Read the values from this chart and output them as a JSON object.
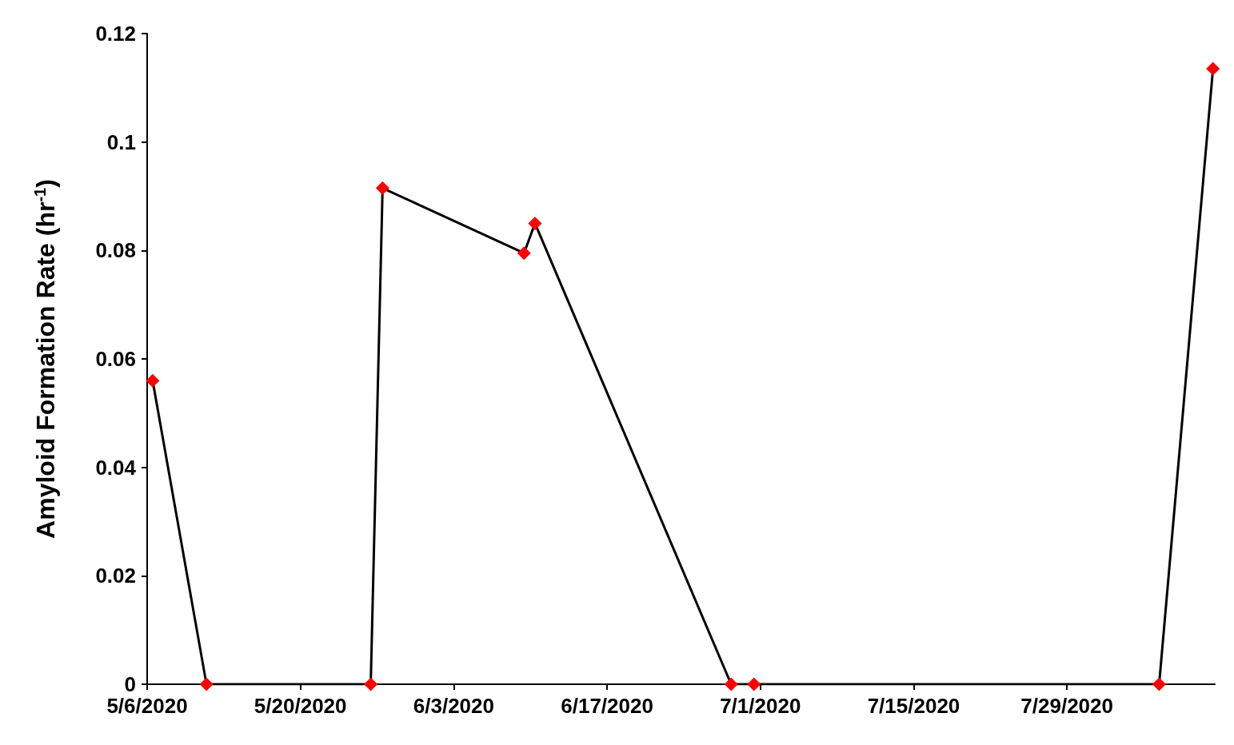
{
  "chart_data": {
    "type": "line",
    "ylabel": "Amyloid Formation Rate (hr$^{-1}$)",
    "x": [
      "2020-05-06T12:00",
      "2020-05-11T10:00",
      "2020-05-26T10:00",
      "2020-05-27T12:00",
      "2020-06-09T10:00",
      "2020-06-10T10:00",
      "2020-06-28T08:00",
      "2020-06-30T10:00",
      "2020-08-06T10:00",
      "2020-08-11T08:00"
    ],
    "series": [
      {
        "color": "#000000",
        "colors": [
          "#ff0000",
          "#ff0000",
          "#ff0000",
          "#ff0000",
          "#ff0000",
          "#ff0000",
          "#ff0000",
          "#ff0000",
          "#ff0000",
          "#ff0000"
        ],
        "values": [
          0.056,
          0,
          0,
          0.0915,
          0.0795,
          0.085,
          0,
          0,
          0,
          0.1135
        ]
      }
    ],
    "xlim": [
      "2020-05-06",
      "2020-08-11T12:00"
    ],
    "xticks": [
      {
        "value": "2020-05-06",
        "label": "5/6/2020"
      },
      {
        "value": "2020-05-20",
        "label": "5/20/2020"
      },
      {
        "value": "2020-06-03",
        "label": "6/3/2020"
      },
      {
        "value": "2020-06-17",
        "label": "6/17/2020"
      },
      {
        "value": "2020-07-01",
        "label": "7/1/2020"
      },
      {
        "value": "2020-07-15",
        "label": "7/15/2020"
      },
      {
        "value": "2020-07-29",
        "label": "7/29/2020"
      }
    ],
    "ylim": [
      0,
      0.12
    ],
    "yticks": [
      0,
      0.02,
      0.04,
      0.06,
      0.08,
      0.1,
      0.12
    ],
    "marker": "diamond",
    "line_style": "solid",
    "grid": false
  }
}
